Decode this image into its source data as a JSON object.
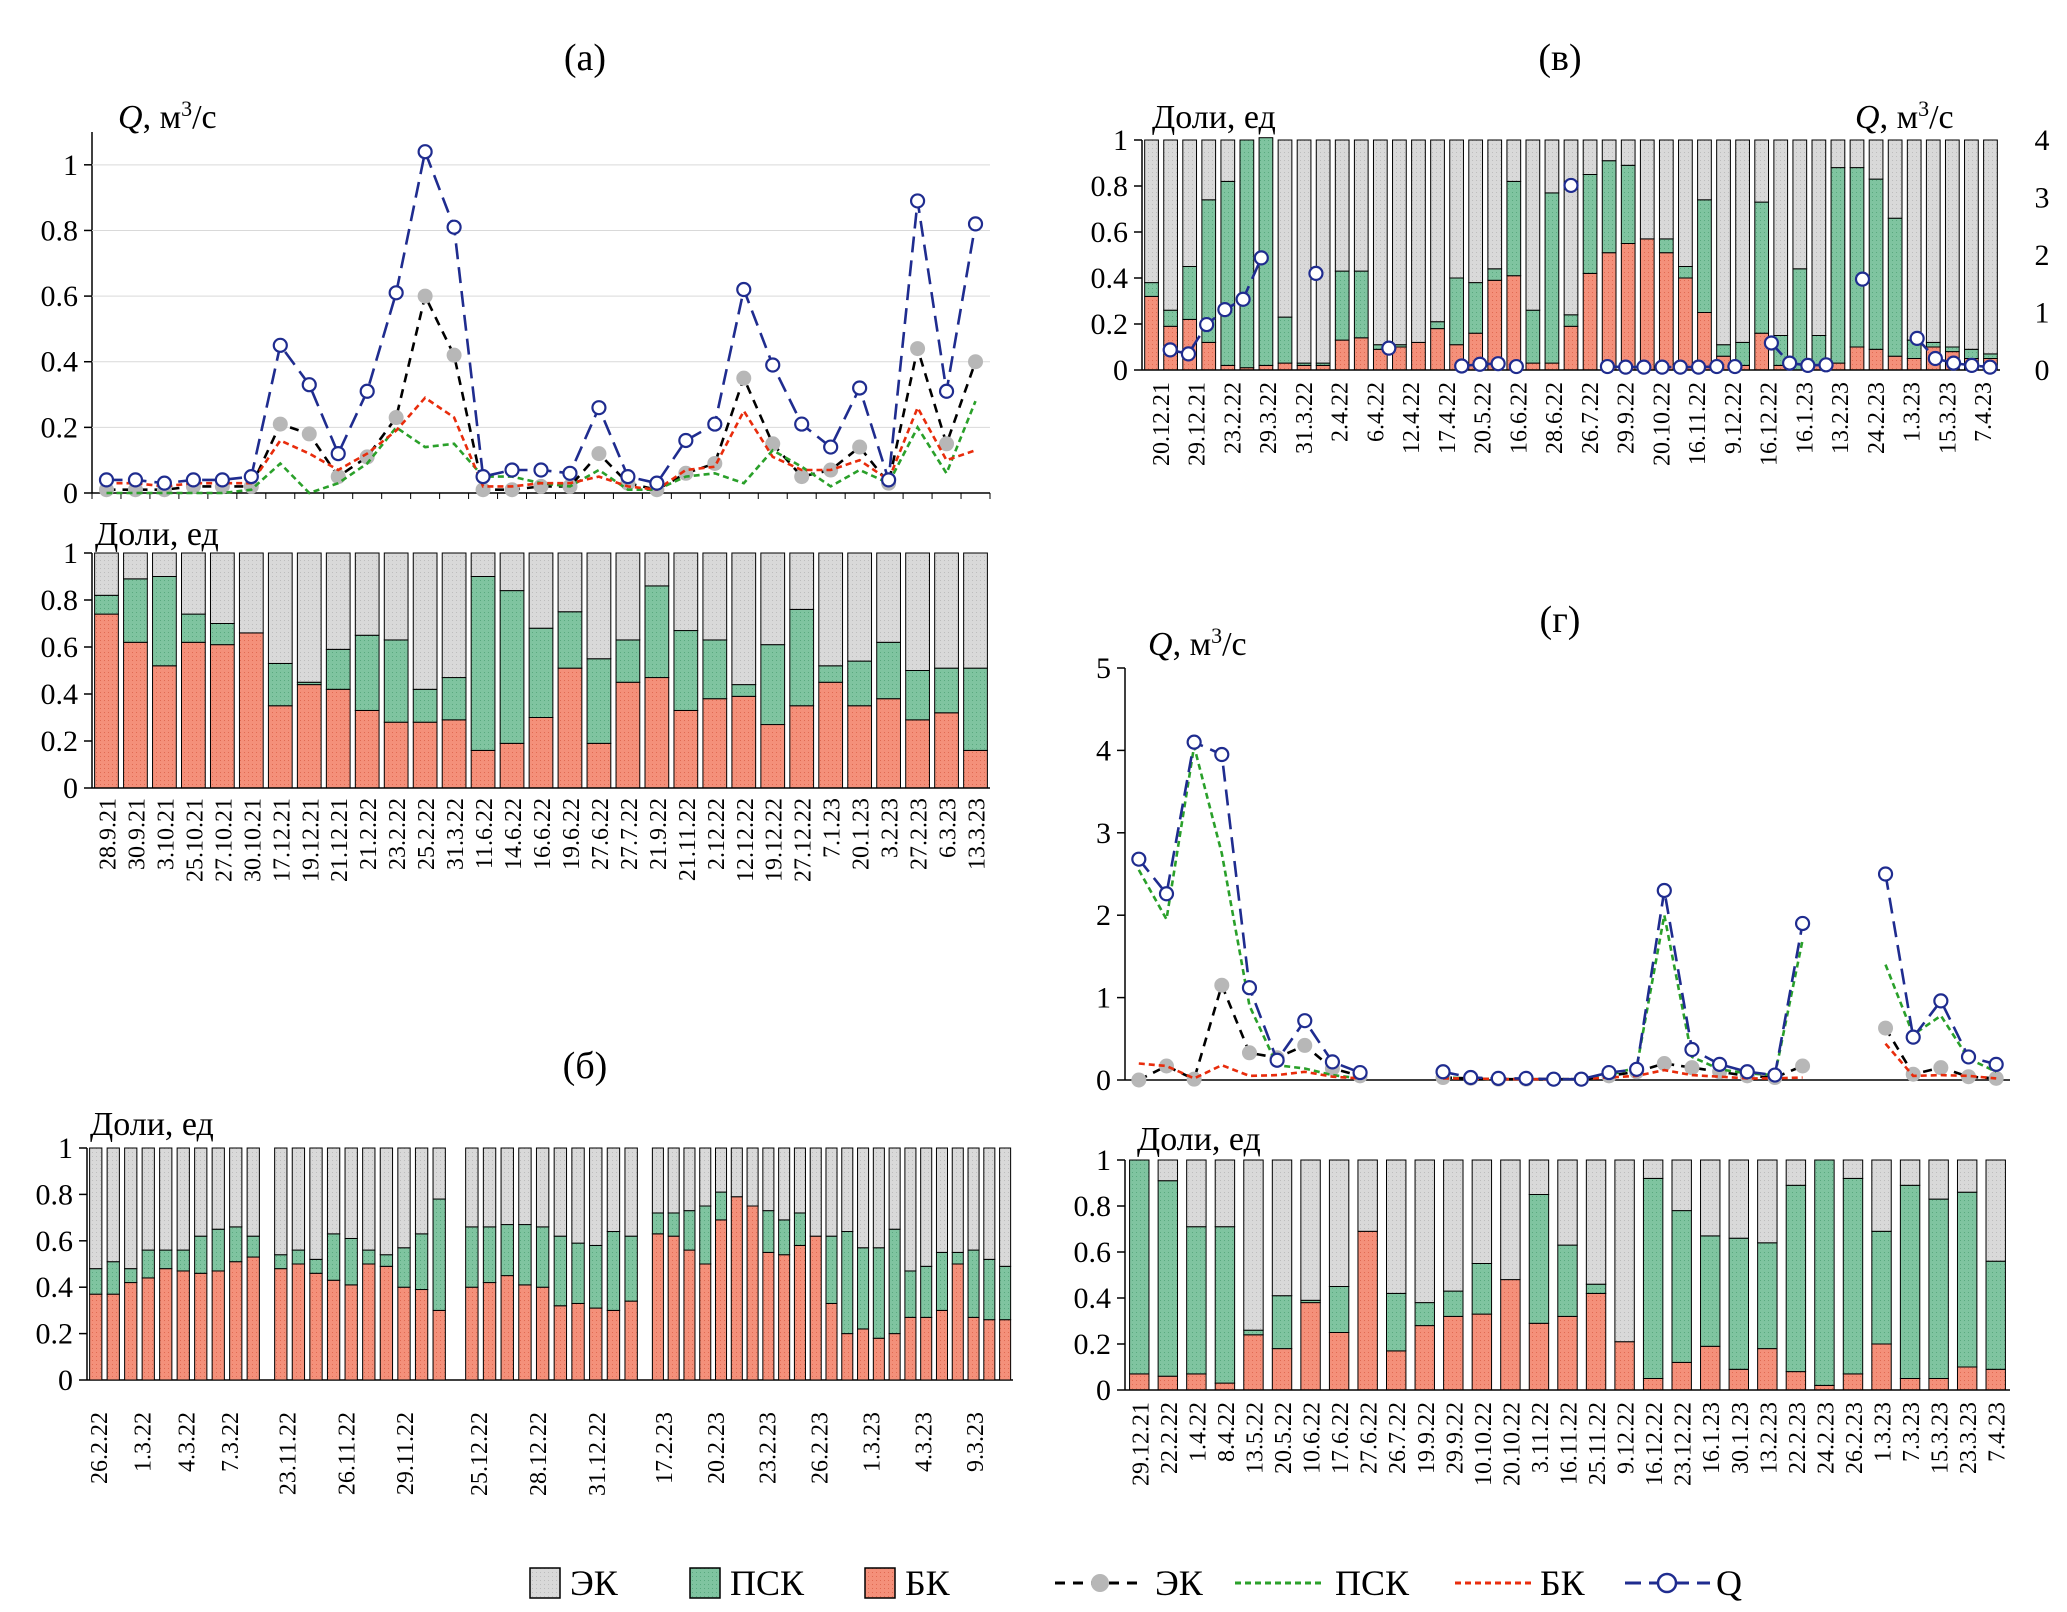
{
  "legend": {
    "bar_ek": "ЭК",
    "bar_psk": "ПСК",
    "bar_bk": "БК",
    "line_ek": "ЭК",
    "line_psk": "ПСК",
    "line_bk": "БК",
    "line_q": "Q"
  },
  "colors": {
    "ek_fill": "#d9d9d9",
    "psk_fill": "#7fc4a0",
    "bk_fill": "#f4907a",
    "ek_line": "#000000",
    "ek_marker": "#b7b7b7",
    "psk_line": "#2aa02a",
    "bk_line": "#e82c0c",
    "q_line": "#1f2c8f"
  },
  "chart_data": [
    {
      "id": "a-top",
      "panel": "(а)",
      "type": "line",
      "ylabel_prefix": "Q",
      "ylabel_suffix": ", м",
      "ylabel_sup": "3",
      "ylabel_tail": "/с",
      "ylim": [
        0,
        1.1
      ],
      "yticks": [
        "0",
        "0.2",
        "0.4",
        "0.6",
        "0.8",
        "1"
      ],
      "series": [
        {
          "name": "ЭК",
          "values": [
            0.01,
            0.01,
            0.01,
            0.02,
            0.02,
            0.02,
            0.21,
            0.18,
            0.05,
            0.11,
            0.23,
            0.6,
            0.42,
            0.01,
            0.01,
            0.02,
            0.02,
            0.12,
            0.03,
            0.01,
            0.06,
            0.09,
            0.35,
            0.15,
            0.05,
            0.07,
            0.14,
            0.03,
            0.44,
            0.15,
            0.4
          ]
        },
        {
          "name": "ПСК",
          "values": [
            0.0,
            0.0,
            0.0,
            0.0,
            0.0,
            0.01,
            0.09,
            0.0,
            0.03,
            0.09,
            0.2,
            0.14,
            0.15,
            0.05,
            0.05,
            0.03,
            0.02,
            0.07,
            0.01,
            0.01,
            0.05,
            0.06,
            0.03,
            0.13,
            0.08,
            0.02,
            0.07,
            0.03,
            0.2,
            0.06,
            0.28
          ]
        },
        {
          "name": "БК",
          "values": [
            0.03,
            0.03,
            0.02,
            0.03,
            0.03,
            0.03,
            0.16,
            0.12,
            0.07,
            0.12,
            0.19,
            0.29,
            0.23,
            0.02,
            0.02,
            0.03,
            0.03,
            0.05,
            0.02,
            0.01,
            0.07,
            0.08,
            0.25,
            0.11,
            0.07,
            0.07,
            0.1,
            0.04,
            0.26,
            0.1,
            0.13
          ]
        },
        {
          "name": "Q",
          "values": [
            0.04,
            0.04,
            0.03,
            0.04,
            0.04,
            0.05,
            0.45,
            0.33,
            0.12,
            0.31,
            0.61,
            1.04,
            0.81,
            0.05,
            0.07,
            0.07,
            0.06,
            0.26,
            0.05,
            0.03,
            0.16,
            0.21,
            0.62,
            0.39,
            0.21,
            0.14,
            0.32,
            0.04,
            0.89,
            0.31,
            0.82
          ]
        }
      ]
    },
    {
      "id": "a-bottom",
      "type": "bar",
      "ylabel": "Доли, ед",
      "ylim": [
        0,
        1
      ],
      "yticks": [
        "0",
        "0.2",
        "0.4",
        "0.6",
        "0.8",
        "1"
      ],
      "categories": [
        "28.9.21",
        "30.9.21",
        "3.10.21",
        "25.10.21",
        "27.10.21",
        "30.10.21",
        "17.12.21",
        "19.12.21",
        "21.12.21",
        "21.2.22",
        "23.2.22",
        "25.2.22",
        "31.3.22",
        "11.6.22",
        "14.6.22",
        "16.6.22",
        "19.6.22",
        "27.6.22",
        "27.7.22",
        "21.9.22",
        "21.11.22",
        "2.12.22",
        "12.12.22",
        "19.12.22",
        "27.12.22",
        "7.1.23",
        "20.1.23",
        "3.2.23",
        "27.2.23",
        "6.3.23",
        "13.3.23"
      ],
      "series": [
        {
          "name": "БК",
          "values": [
            0.74,
            0.62,
            0.52,
            0.62,
            0.61,
            0.66,
            0.35,
            0.44,
            0.42,
            0.33,
            0.28,
            0.28,
            0.29,
            0.16,
            0.19,
            0.3,
            0.51,
            0.19,
            0.45,
            0.47,
            0.33,
            0.38,
            0.39,
            0.27,
            0.35,
            0.45,
            0.35,
            0.38,
            0.29,
            0.32,
            0.16
          ]
        },
        {
          "name": "ПСК",
          "values": [
            0.08,
            0.27,
            0.38,
            0.12,
            0.09,
            0.0,
            0.18,
            0.01,
            0.17,
            0.32,
            0.35,
            0.14,
            0.18,
            0.74,
            0.65,
            0.38,
            0.24,
            0.36,
            0.18,
            0.39,
            0.34,
            0.25,
            0.05,
            0.34,
            0.41,
            0.07,
            0.19,
            0.24,
            0.21,
            0.19,
            0.35
          ]
        },
        {
          "name": "ЭК",
          "values": [
            0.18,
            0.11,
            0.1,
            0.26,
            0.3,
            0.34,
            0.47,
            0.55,
            0.41,
            0.35,
            0.37,
            0.58,
            0.53,
            0.1,
            0.16,
            0.32,
            0.25,
            0.45,
            0.37,
            0.14,
            0.33,
            0.37,
            0.56,
            0.39,
            0.24,
            0.48,
            0.46,
            0.38,
            0.5,
            0.49,
            0.49
          ]
        }
      ]
    },
    {
      "id": "b",
      "panel": "(б)",
      "type": "bar",
      "ylabel": "Доли, ед",
      "ylim": [
        0,
        1
      ],
      "yticks": [
        "0",
        "0.2",
        "0.4",
        "0.6",
        "0.8",
        "1"
      ],
      "groups": [
        {
          "labels": [
            "26.2.22",
            "1.3.22",
            "4.3.22",
            "7.3.22"
          ],
          "bk": [
            0.37,
            0.37,
            0.42,
            0.44,
            0.48,
            0.47,
            0.46,
            0.47,
            0.51,
            0.53
          ],
          "psk": [
            0.11,
            0.14,
            0.06,
            0.12,
            0.08,
            0.09,
            0.16,
            0.18,
            0.15,
            0.09
          ]
        },
        {
          "labels": [
            "23.11.22",
            "26.11.22",
            "29.11.22"
          ],
          "bk": [
            0.48,
            0.5,
            0.46,
            0.43,
            0.41,
            0.5,
            0.49,
            0.4,
            0.39,
            0.3
          ],
          "psk": [
            0.06,
            0.06,
            0.06,
            0.2,
            0.2,
            0.06,
            0.05,
            0.17,
            0.24,
            0.48
          ]
        },
        {
          "labels": [
            "25.12.22",
            "28.12.22",
            "31.12.22"
          ],
          "bk": [
            0.4,
            0.42,
            0.45,
            0.41,
            0.4,
            0.32,
            0.33,
            0.31,
            0.3,
            0.34
          ],
          "psk": [
            0.26,
            0.24,
            0.22,
            0.26,
            0.26,
            0.3,
            0.26,
            0.27,
            0.34,
            0.28
          ]
        },
        {
          "labels": [
            "17.2.23",
            "20.2.23",
            "23.2.23",
            "26.2.23",
            "1.3.23",
            "4.3.23",
            "9.3.23"
          ],
          "bk": [
            0.63,
            0.62,
            0.56,
            0.5,
            0.69,
            0.79,
            0.75,
            0.55,
            0.54,
            0.58,
            0.62,
            0.33,
            0.2,
            0.22,
            0.18,
            0.2,
            0.27,
            0.27,
            0.3,
            0.5,
            0.27,
            0.26,
            0.26
          ],
          "psk": [
            0.09,
            0.1,
            0.17,
            0.25,
            0.12,
            0.0,
            0.0,
            0.18,
            0.15,
            0.14,
            0.0,
            0.29,
            0.44,
            0.35,
            0.39,
            0.45,
            0.2,
            0.22,
            0.25,
            0.05,
            0.29,
            0.26,
            0.23
          ]
        }
      ]
    },
    {
      "id": "v",
      "panel": "(в)",
      "type": "bar",
      "ylabel": "Доли, ед",
      "ylabel_right_prefix": "Q",
      "ylabel_right_suffix": ", м",
      "ylabel_right_sup": "3",
      "ylabel_right_tail": "/с",
      "ylim": [
        0,
        1
      ],
      "y2lim": [
        0,
        4
      ],
      "yticks": [
        "0",
        "0.2",
        "0.4",
        "0.6",
        "0.8",
        "1"
      ],
      "y2ticks": [
        "0",
        "1",
        "2",
        "3",
        "4"
      ],
      "categories": [
        "20.12.21",
        "29.12.21",
        "23.2.22",
        "29.3.22",
        "31.3.22",
        "2.4.22",
        "6.4.22",
        "12.4.22",
        "17.4.22",
        "20.5.22",
        "16.6.22",
        "28.6.22",
        "26.7.22",
        "29.9.22",
        "20.10.22",
        "16.11.22",
        "9.12.22",
        "16.12.22",
        "16.1.23",
        "13.2.23",
        "24.2.23",
        "1.3.23",
        "15.3.23",
        "7.4.23"
      ],
      "bk": [
        0.32,
        0.19,
        0.22,
        0.12,
        0.02,
        0.01,
        0.02,
        0.03,
        0.02,
        0.02,
        0.13,
        0.14,
        0.09,
        0.1,
        0.12,
        0.18,
        0.11,
        0.16,
        0.39,
        0.41,
        0.03,
        0.03,
        0.19,
        0.42,
        0.51,
        0.55,
        0.57,
        0.51,
        0.4,
        0.25,
        0.06,
        0.02,
        0.16,
        0.02,
        0.0,
        0.02,
        0.03,
        0.1,
        0.09,
        0.06,
        0.05,
        0.1,
        0.08,
        0.05,
        0.05
      ],
      "psk": [
        0.06,
        0.07,
        0.23,
        0.62,
        0.8,
        0.99,
        0.99,
        0.2,
        0.01,
        0.01,
        0.3,
        0.29,
        0.02,
        0.01,
        0.0,
        0.03,
        0.29,
        0.22,
        0.05,
        0.41,
        0.23,
        0.74,
        0.05,
        0.43,
        0.4,
        0.34,
        0.0,
        0.06,
        0.05,
        0.49,
        0.05,
        0.1,
        0.57,
        0.13,
        0.44,
        0.13,
        0.85,
        0.78,
        0.74,
        0.6,
        0.08,
        0.02,
        0.02,
        0.04,
        0.02
      ],
      "q": [
        null,
        0.35,
        0.28,
        0.79,
        1.05,
        1.23,
        1.95,
        null,
        null,
        1.68,
        null,
        null,
        null,
        0.38,
        null,
        null,
        null,
        0.07,
        0.1,
        0.11,
        0.06,
        null,
        null,
        3.21,
        null,
        0.06,
        0.05,
        0.05,
        0.05,
        0.05,
        0.05,
        0.06,
        0.06,
        null,
        0.47,
        0.12,
        0.08,
        0.09,
        null,
        1.58,
        null,
        null,
        0.55,
        0.2,
        0.12,
        0.08,
        0.05
      ]
    },
    {
      "id": "g-top",
      "panel": "(г)",
      "type": "line",
      "ylabel_prefix": "Q",
      "ylabel_suffix": ", м",
      "ylabel_sup": "3",
      "ylabel_tail": "/с",
      "ylim": [
        0,
        5
      ],
      "yticks": [
        "0",
        "1",
        "2",
        "3",
        "4",
        "5"
      ],
      "series": [
        {
          "name": "ЭК",
          "values": [
            0.0,
            0.17,
            0.01,
            1.15,
            0.33,
            0.27,
            0.42,
            0.14,
            0.05,
            null,
            null,
            0.03,
            0.02,
            0.01,
            0.01,
            0.01,
            0.01,
            0.05,
            0.1,
            0.2,
            0.15,
            0.1,
            0.05,
            0.03,
            0.17,
            null,
            null,
            0.63,
            0.07,
            0.15,
            0.04,
            0.02
          ]
        },
        {
          "name": "ПСК",
          "values": [
            2.55,
            1.95,
            4.05,
            2.75,
            0.9,
            0.18,
            0.14,
            0.06,
            0.02,
            null,
            null,
            0.03,
            0.02,
            0.01,
            0.01,
            0.01,
            0.01,
            0.06,
            0.15,
            2.0,
            0.28,
            0.13,
            0.08,
            0.06,
            1.7,
            null,
            null,
            1.4,
            0.55,
            0.78,
            0.26,
            0.1
          ]
        },
        {
          "name": "БК",
          "values": [
            0.2,
            0.17,
            0.02,
            0.18,
            0.05,
            0.06,
            0.1,
            0.04,
            0.02,
            null,
            null,
            0.02,
            0.02,
            0.01,
            0.01,
            0.01,
            0.01,
            0.03,
            0.05,
            0.12,
            0.06,
            0.04,
            0.02,
            0.02,
            0.03,
            null,
            null,
            0.44,
            0.05,
            0.06,
            0.05,
            0.02
          ]
        },
        {
          "name": "Q",
          "values": [
            2.68,
            2.26,
            4.1,
            3.95,
            1.12,
            0.24,
            0.72,
            0.22,
            0.09,
            null,
            null,
            0.1,
            0.03,
            0.02,
            0.02,
            0.01,
            0.01,
            0.09,
            0.13,
            2.3,
            0.37,
            0.19,
            0.1,
            0.06,
            1.9,
            null,
            null,
            2.5,
            0.52,
            0.96,
            0.28,
            0.19
          ]
        }
      ]
    },
    {
      "id": "g-bottom",
      "type": "bar",
      "ylabel": "Доли, ед",
      "ylim": [
        0,
        1
      ],
      "yticks": [
        "0",
        "0.2",
        "0.4",
        "0.6",
        "0.8",
        "1"
      ],
      "categories": [
        "29.12.21",
        "22.2.22",
        "1.4.22",
        "8.4.22",
        "13.5.22",
        "20.5.22",
        "10.6.22",
        "17.6.22",
        "27.6.22",
        "26.7.22",
        "19.9.22",
        "29.9.22",
        "10.10.22",
        "20.10.22",
        "3.11.22",
        "16.11.22",
        "25.11.22",
        "9.12.22",
        "16.12.22",
        "23.12.22",
        "16.1.23",
        "30.1.23",
        "13.2.23",
        "22.2.23",
        "24.2.23",
        "26.2.23",
        "1.3.23",
        "7.3.23",
        "15.3.23",
        "23.3.23",
        "7.4.23"
      ],
      "bk": [
        0.07,
        0.06,
        0.07,
        0.03,
        0.24,
        0.18,
        0.38,
        0.25,
        0.69,
        0.17,
        0.28,
        0.32,
        0.33,
        0.48,
        0.29,
        0.32,
        0.42,
        0.21,
        0.05,
        0.12,
        0.19,
        0.09,
        0.18,
        0.08,
        0.02,
        0.07,
        0.2,
        0.05,
        0.05,
        0.1,
        0.09
      ],
      "psk": [
        0.93,
        0.85,
        0.64,
        0.68,
        0.02,
        0.23,
        0.01,
        0.2,
        0.0,
        0.25,
        0.1,
        0.11,
        0.22,
        0.0,
        0.56,
        0.31,
        0.04,
        0.0,
        0.87,
        0.66,
        0.48,
        0.57,
        0.46,
        0.81,
        0.98,
        0.85,
        0.49,
        0.84,
        0.78,
        0.76,
        0.47
      ]
    }
  ]
}
